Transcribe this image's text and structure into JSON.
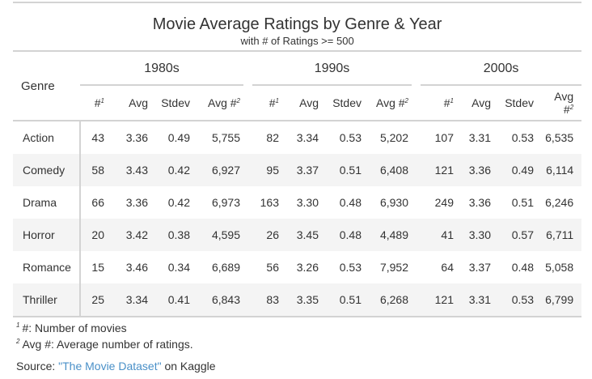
{
  "title": "Movie Average Ratings by Genre & Year",
  "subtitle": "with # of Ratings >= 500",
  "stub_header": "Genre",
  "decades": [
    "1980s",
    "1990s",
    "2000s"
  ],
  "column_labels": [
    "#",
    "Avg",
    "Stdev",
    "Avg #"
  ],
  "column_footnote_marks": [
    "1",
    "",
    "",
    "2"
  ],
  "rows": [
    {
      "genre": "Action",
      "cells": [
        "43",
        "3.36",
        "0.49",
        "5,755",
        "82",
        "3.34",
        "0.53",
        "5,202",
        "107",
        "3.31",
        "0.53",
        "6,535"
      ]
    },
    {
      "genre": "Comedy",
      "cells": [
        "58",
        "3.43",
        "0.42",
        "6,927",
        "95",
        "3.37",
        "0.51",
        "6,408",
        "121",
        "3.36",
        "0.49",
        "6,114"
      ]
    },
    {
      "genre": "Drama",
      "cells": [
        "66",
        "3.36",
        "0.42",
        "6,973",
        "163",
        "3.30",
        "0.48",
        "6,930",
        "249",
        "3.36",
        "0.51",
        "6,246"
      ]
    },
    {
      "genre": "Horror",
      "cells": [
        "20",
        "3.42",
        "0.38",
        "4,595",
        "26",
        "3.45",
        "0.48",
        "4,489",
        "41",
        "3.30",
        "0.57",
        "6,711"
      ]
    },
    {
      "genre": "Romance",
      "cells": [
        "15",
        "3.46",
        "0.34",
        "6,689",
        "56",
        "3.26",
        "0.53",
        "7,952",
        "64",
        "3.37",
        "0.48",
        "5,058"
      ]
    },
    {
      "genre": "Thriller",
      "cells": [
        "25",
        "3.34",
        "0.41",
        "6,843",
        "83",
        "3.35",
        "0.51",
        "6,268",
        "121",
        "3.31",
        "0.53",
        "6,799"
      ]
    }
  ],
  "footnotes": [
    {
      "mark": "1",
      "text": "#: Number of movies"
    },
    {
      "mark": "2",
      "text": "Avg #: Average number of ratings."
    }
  ],
  "source": {
    "prefix": "Source: ",
    "link_text": "\"The Movie Dataset\"",
    "suffix": " on Kaggle"
  },
  "colors": {
    "rule": "#d3d3d3",
    "stripe": "#f4f4f4",
    "text": "#333333",
    "link": "#4a90c8"
  }
}
